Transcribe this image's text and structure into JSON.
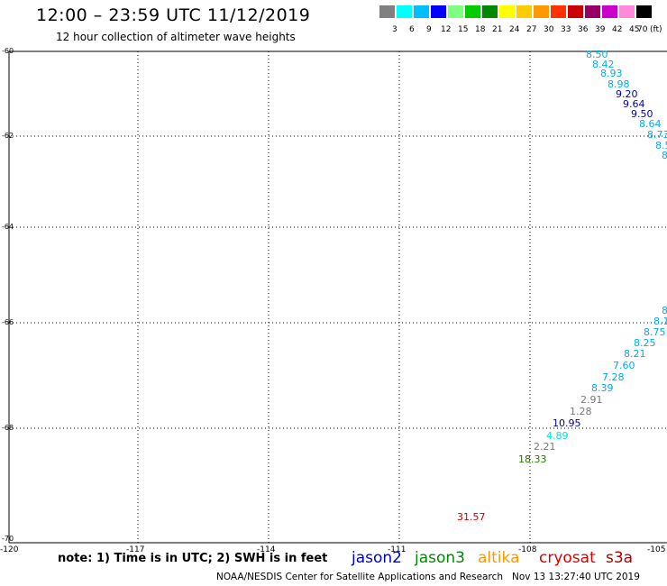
{
  "header": {
    "title": "12:00 – 23:59 UTC 11/12/2019",
    "subtitle": "12 hour collection of altimeter wave heights"
  },
  "legend": {
    "unit": "(ft)",
    "labels": [
      "3",
      "6",
      "9",
      "12",
      "15",
      "18",
      "21",
      "24",
      "27",
      "30",
      "33",
      "36",
      "39",
      "42",
      "45",
      "70"
    ],
    "colors": [
      "#808080",
      "#00ffff",
      "#00bfff",
      "#0000ff",
      "#7fff7f",
      "#00cc00",
      "#008800",
      "#ffff00",
      "#ffcc00",
      "#ff9900",
      "#ff3300",
      "#cc0000",
      "#990066",
      "#cc00cc",
      "#ff88dd",
      "#000000"
    ]
  },
  "axes": {
    "lat_labels": [
      "-60",
      "-62",
      "-64",
      "-66",
      "-68",
      "-70"
    ],
    "lon_labels": [
      "-120",
      "-117",
      "-114",
      "-111",
      "-108",
      "-105"
    ]
  },
  "wave_heights": [
    {
      "text": "8.50",
      "color": "#00aaee"
    },
    {
      "text": "8.42",
      "color": "#00aaee"
    },
    {
      "text": "8.93",
      "color": "#00aaee"
    },
    {
      "text": "8.98",
      "color": "#00aaee"
    },
    {
      "text": "9.20",
      "color": "#0000aa"
    },
    {
      "text": "9.64",
      "color": "#0000aa"
    },
    {
      "text": "9.50",
      "color": "#0000aa"
    },
    {
      "text": "8.64",
      "color": "#00aaee"
    },
    {
      "text": "8.73",
      "color": "#00aaee"
    },
    {
      "text": "8.5",
      "color": "#00aaee"
    },
    {
      "text": "8",
      "color": "#00aaee"
    },
    {
      "text": "8",
      "color": "#00aaee"
    },
    {
      "text": "8.1",
      "color": "#00aaee"
    },
    {
      "text": "8.75",
      "color": "#00aaee"
    },
    {
      "text": "8.25",
      "color": "#00aaee"
    },
    {
      "text": "8.21",
      "color": "#00aaee"
    },
    {
      "text": "7.60",
      "color": "#00aaee"
    },
    {
      "text": "7.28",
      "color": "#00aaee"
    },
    {
      "text": "8.39",
      "color": "#00aaee"
    },
    {
      "text": "2.91",
      "color": "#777777"
    },
    {
      "text": "1.28",
      "color": "#777777"
    },
    {
      "text": "10.95",
      "color": "#0000aa"
    },
    {
      "text": "4.89",
      "color": "#00e0f0"
    },
    {
      "text": "2.21",
      "color": "#777777"
    },
    {
      "text": "18.33",
      "color": "#227700"
    },
    {
      "text": "31.57",
      "color": "#cc0000"
    }
  ],
  "footer": {
    "note": "note: 1) Time is in UTC; 2) SWH is in feet",
    "satellites": [
      {
        "text": "jason2",
        "color": "#0000cc"
      },
      {
        "text": "jason3",
        "color": "#008800"
      },
      {
        "text": "altika",
        "color": "#ff9900"
      },
      {
        "text": "cryosat",
        "color": "#dd0000"
      },
      {
        "text": "s3a",
        "color": "#aa0000"
      }
    ],
    "credit": "NOAA/NESDIS Center for Satellite Applications and Research",
    "timestamp": "Nov 13 13:27:40 UTC 2019"
  }
}
